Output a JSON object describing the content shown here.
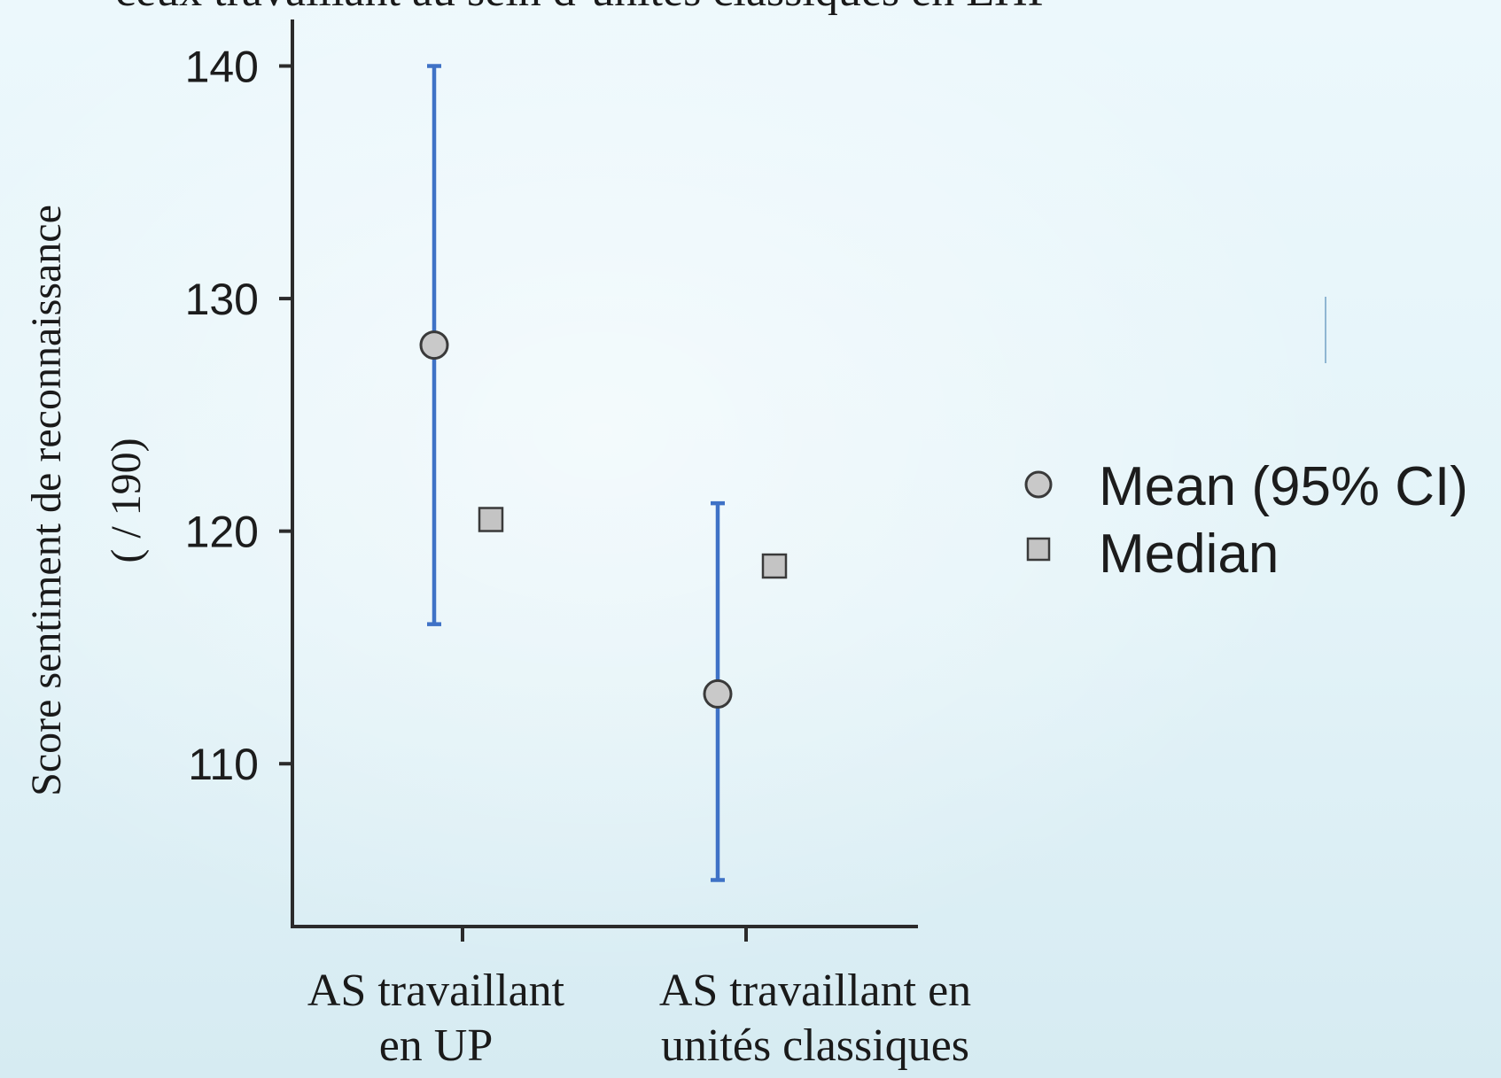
{
  "title_partial": "ceux travaillant au sein d’unités classiques en EHP",
  "chart_data": {
    "type": "scatter",
    "title": "",
    "ylabel": "Score sentiment de reconnaissance",
    "ylabel_sub": "( / 190)",
    "xlabel": "",
    "categories": [
      [
        "AS travaillant",
        "en UP"
      ],
      [
        "AS travaillant en",
        "unités classiques"
      ]
    ],
    "ylim": [
      103,
      142
    ],
    "yticks": [
      110,
      120,
      130,
      140
    ],
    "ci_color": "#3f72c6",
    "series": [
      {
        "name": "Mean (95% CI)",
        "marker": "circle",
        "values": [
          128,
          113
        ],
        "ci_low": [
          116,
          105
        ],
        "ci_high": [
          140,
          121.2
        ]
      },
      {
        "name": "Median",
        "marker": "square",
        "values": [
          120.5,
          118.5
        ]
      }
    ],
    "legend_position": "right",
    "grid": false
  }
}
